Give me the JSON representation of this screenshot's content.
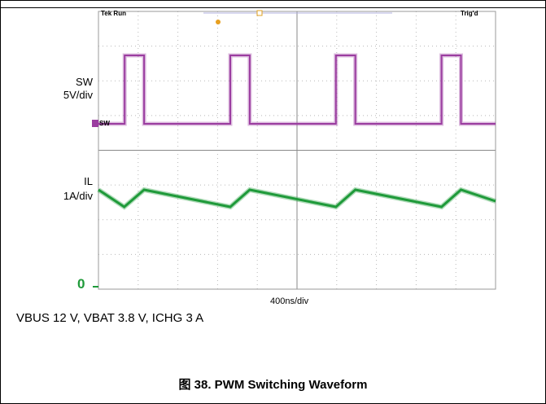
{
  "header": {
    "left_status": "Tek Run",
    "right_status": "Trig'd"
  },
  "channels": {
    "sw": {
      "name": "SW",
      "scale": "5V/div",
      "marker": "SW",
      "color": "#9b3da0"
    },
    "il": {
      "name": "IL",
      "scale": "1A/div",
      "zero_marker": "0",
      "color": "#1f9a3a"
    }
  },
  "timebase": "400ns/div",
  "conditions": "VBUS 12 V, VBAT 3.8 V, ICHG 3 A",
  "figure_title": "图 38. PWM Switching Waveform",
  "chart_data": {
    "type": "line",
    "title": "图 38. PWM Switching Waveform",
    "xlabel": "400ns/div",
    "ylabel": "",
    "time_per_div_ns": 400,
    "x_divisions": 10,
    "y_divisions": 8,
    "grid": true,
    "series": [
      {
        "name": "SW",
        "scale_per_div": "5V/div",
        "unit": "V",
        "x_ns": [
          0,
          264,
          264,
          460,
          460,
          1328,
          1328,
          1524,
          1524,
          2392,
          2392,
          2588,
          2588,
          3456,
          3456,
          3652,
          3652,
          4000
        ],
        "values": [
          0,
          0,
          12,
          12,
          0,
          0,
          12,
          12,
          0,
          0,
          12,
          12,
          0,
          0,
          12,
          12,
          0,
          0
        ]
      },
      {
        "name": "IL",
        "scale_per_div": "1A/div",
        "unit": "A",
        "x_ns": [
          0,
          260,
          460,
          1328,
          1524,
          2392,
          2588,
          3456,
          3652,
          4000
        ],
        "values": [
          3.4,
          2.8,
          3.4,
          2.8,
          3.4,
          2.8,
          3.4,
          2.8,
          3.4,
          3.0
        ]
      }
    ]
  }
}
